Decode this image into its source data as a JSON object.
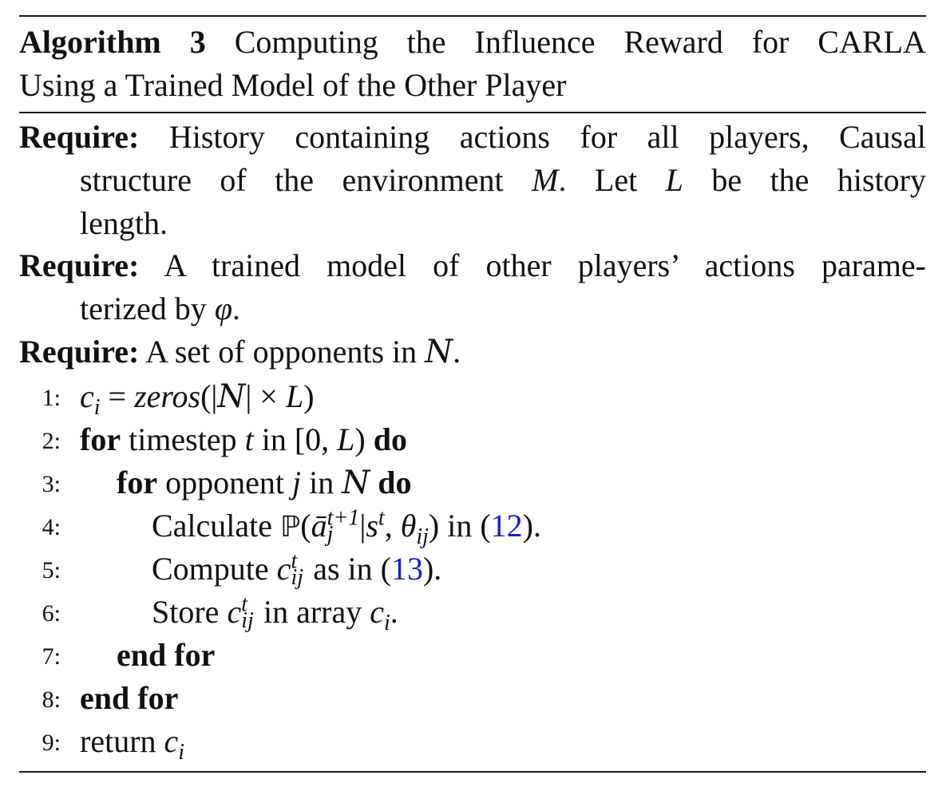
{
  "caption": {
    "label": "Algorithm 3",
    "title_line1": "Computing the Influence Reward for CARLA",
    "title_line2": "Using a Trained Model of the Other Player"
  },
  "requires": [
    {
      "keyword": "Require:",
      "line1": "History containing actions for all players, Causal",
      "line2_a": "structure of the environment ",
      "line2_m": "M",
      "line2_b": ". Let ",
      "line2_l": "L",
      "line2_c": " be the history",
      "line3": "length."
    },
    {
      "keyword": "Require:",
      "line1": "A trained model of other players’ actions parame-",
      "line2_a": "terized by ",
      "line2_phi": "φ",
      "line2_b": "."
    },
    {
      "keyword": "Require:",
      "line1_a": "A set of opponents in ",
      "line1_n": "N",
      "line1_b": "."
    }
  ],
  "steps": [
    {
      "num": "1:",
      "c": "c",
      "i": "i",
      "eq": " = ",
      "zeros": "zeros",
      "open": "(|",
      "N": "N",
      "close": "| × ",
      "L": "L",
      "end": ")"
    },
    {
      "num": "2:",
      "kw1": "for",
      "text_a": " timestep ",
      "t": "t",
      "text_b": " in [0, ",
      "L": "L",
      "text_c": ") ",
      "kw2": "do"
    },
    {
      "num": "3:",
      "kw1": "for",
      "text_a": " opponent ",
      "j": "j",
      "text_b": " in ",
      "N": "N",
      "text_c": " ",
      "kw2": "do"
    },
    {
      "num": "4:",
      "text_a": "Calculate ",
      "P": "ℙ",
      "open": "(",
      "a": "ā",
      "a_sup": "t+1",
      "a_sub": "j",
      "bar": "|",
      "s": "s",
      "s_sup": "t",
      "comma": ", ",
      "theta": "θ",
      "theta_sub": "ij",
      "close": ")",
      "text_b": " in (",
      "ref": "12",
      "text_c": ")."
    },
    {
      "num": "5:",
      "text_a": "Compute ",
      "c": "c",
      "c_sup": "t",
      "c_sub": "ij",
      "text_b": " as in (",
      "ref": "13",
      "text_c": ")."
    },
    {
      "num": "6:",
      "text_a": "Store ",
      "c": "c",
      "c_sup": "t",
      "c_sub": "ij",
      "text_b": " in array ",
      "c2": "c",
      "c2_sub": "i",
      "text_c": "."
    },
    {
      "num": "7:",
      "kw": "end for"
    },
    {
      "num": "8:",
      "kw": "end for"
    },
    {
      "num": "9:",
      "text_a": "return ",
      "c": "c",
      "c_sub": "i"
    }
  ]
}
